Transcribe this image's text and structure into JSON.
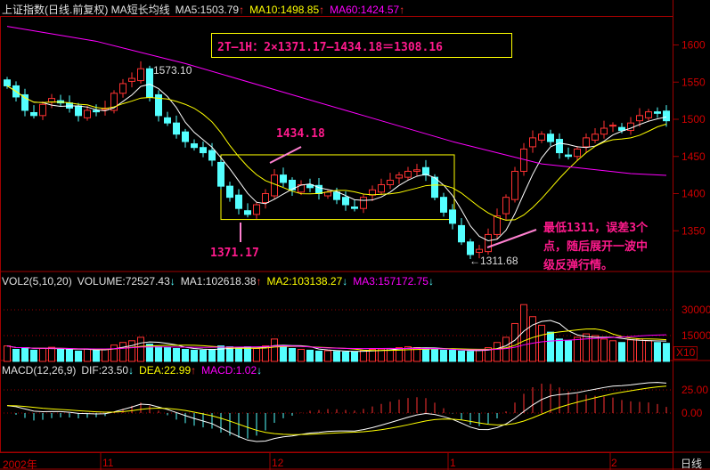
{
  "header": {
    "title": "上证指数(日线.前复权) MA短长均线",
    "ma5": "MA5:1503.79",
    "ma10": "MA10:1498.85",
    "ma60": "MA60:1424.57",
    "arrow_up": "↑",
    "arrow_down": "↓"
  },
  "volume_header": {
    "title": "VOL2(5,10,20)",
    "volume": "VOLUME:72527.43",
    "ma1": "MA1:102618.38",
    "ma2": "MA2:103138.27",
    "ma3": "MA3:157172.75"
  },
  "macd_header": {
    "title": "MACD(12,26,9)",
    "dif": "DIF:23.50",
    "dea": "DEA:22.99",
    "macd": "MACD:1.02"
  },
  "annotations": {
    "formula": "2T—1H：2×1371.17—1434.18＝1308.16",
    "high_label": "1434.18",
    "low_label": "1371.17",
    "peak_label": "1573.10",
    "bottom_label": "←1311.68",
    "comment_1": "最低1311，误差3个",
    "comment_2": "点，随后展开一波中",
    "comment_3": "级反弹行情。"
  },
  "x_axis": {
    "labels": [
      "2002年",
      "11",
      "12",
      "1",
      "2"
    ],
    "period": "日线"
  },
  "colors": {
    "up": "#ff3232",
    "down": "#54ffff",
    "ma5": "#ffffff",
    "ma10": "#ffff00",
    "ma60": "#ff00ff",
    "axis": "#a00000",
    "annotation": "#ff1a8c",
    "box": "#ffff00"
  },
  "chart_data": [
    {
      "type": "candlestick",
      "price_ticks": [
        1600,
        1550,
        1500,
        1450,
        1400,
        1350
      ],
      "ylim": [
        1290,
        1640
      ],
      "closes": [
        1545,
        1530,
        1512,
        1505,
        1520,
        1528,
        1522,
        1515,
        1505,
        1512,
        1510,
        1515,
        1535,
        1548,
        1555,
        1568,
        1530,
        1505,
        1495,
        1480,
        1470,
        1462,
        1455,
        1445,
        1410,
        1395,
        1380,
        1372,
        1385,
        1400,
        1425,
        1415,
        1405,
        1412,
        1408,
        1400,
        1402,
        1392,
        1385,
        1380,
        1395,
        1405,
        1412,
        1418,
        1425,
        1430,
        1432,
        1425,
        1395,
        1375,
        1360,
        1335,
        1318,
        1325,
        1345,
        1370,
        1395,
        1430,
        1460,
        1475,
        1480,
        1470,
        1455,
        1450,
        1460,
        1475,
        1480,
        1488,
        1492,
        1485,
        1495,
        1505,
        1510,
        1508,
        1498
      ],
      "ma60_points": [
        [
          0,
          1625
        ],
        [
          10,
          1605
        ],
        [
          20,
          1575
        ],
        [
          30,
          1540
        ],
        [
          40,
          1505
        ],
        [
          50,
          1470
        ],
        [
          60,
          1440
        ],
        [
          70,
          1427
        ],
        [
          74,
          1424.57
        ]
      ],
      "box_range": [
        1371.17,
        1434.18
      ]
    },
    {
      "type": "bar",
      "name": "VOL2",
      "ticks": [
        30000,
        15000
      ],
      "unit_label": "X10",
      "values": [
        9000,
        7000,
        8000,
        6500,
        7500,
        8200,
        7000,
        6800,
        6000,
        7200,
        6500,
        7000,
        9500,
        11000,
        12000,
        14000,
        10000,
        8500,
        8000,
        7500,
        7000,
        6500,
        6500,
        7000,
        9000,
        8500,
        8000,
        8500,
        7500,
        9000,
        13000,
        9000,
        7500,
        7000,
        6500,
        6000,
        6200,
        5800,
        5500,
        5500,
        6500,
        7000,
        7200,
        7500,
        8000,
        8500,
        8000,
        7500,
        7000,
        6500,
        6500,
        6000,
        5800,
        6500,
        8000,
        11000,
        14000,
        22000,
        33000,
        26000,
        21000,
        17000,
        13000,
        12000,
        14000,
        16000,
        15000,
        13000,
        12000,
        11000,
        12500,
        13000,
        12000,
        11000,
        10500
      ]
    },
    {
      "type": "macd",
      "ticks": [
        "25.00",
        "0.00"
      ]
    }
  ]
}
